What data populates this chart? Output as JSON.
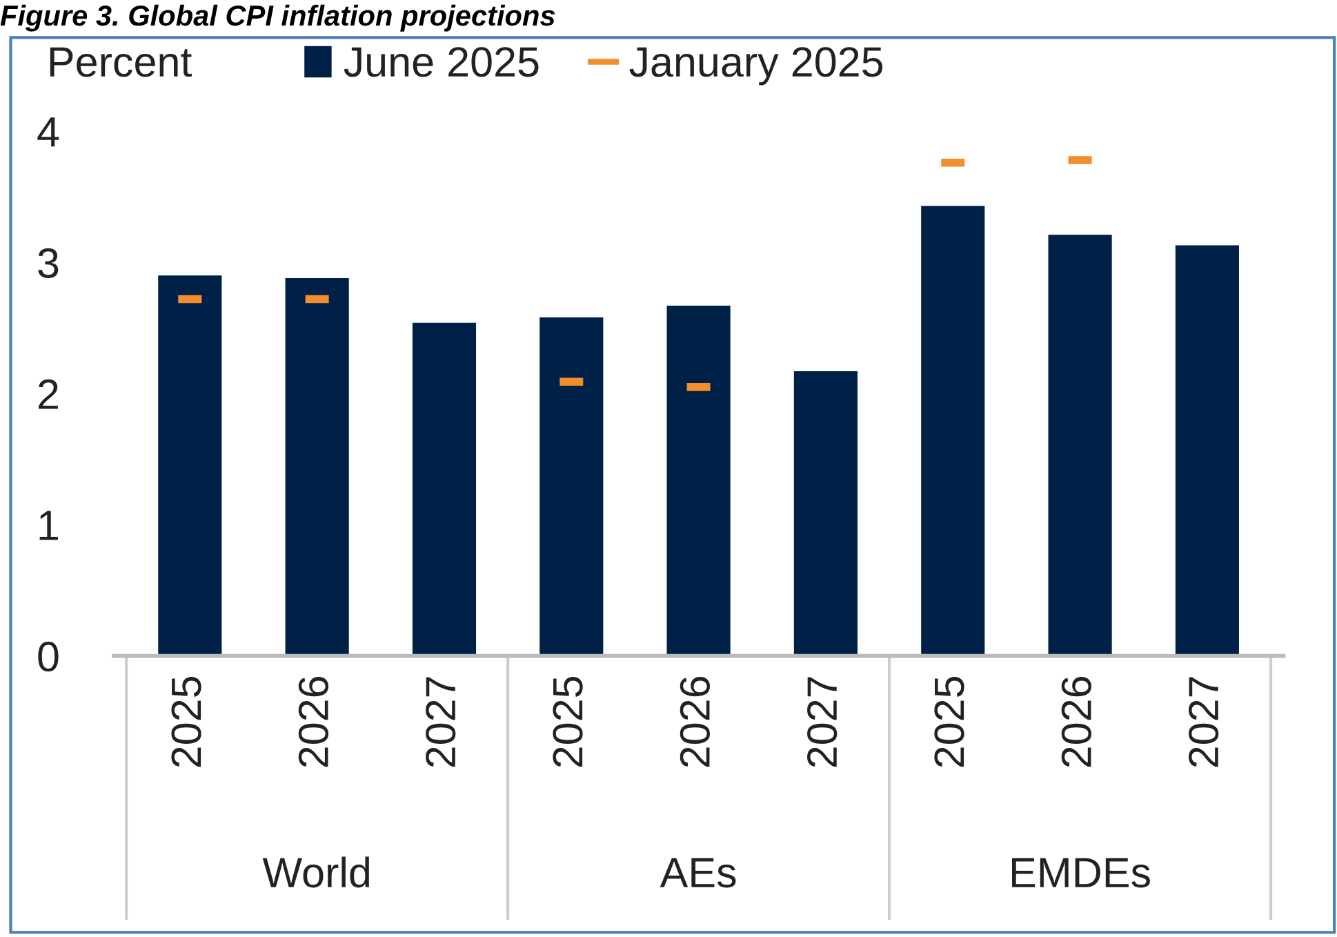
{
  "chart_data": {
    "type": "bar",
    "title": "Figure 3. Global CPI inflation projections",
    "ylabel": "Percent",
    "categories": [
      "2025",
      "2026",
      "2027",
      "2025",
      "2026",
      "2027",
      "2025",
      "2026",
      "2027"
    ],
    "annotations": [
      "World",
      "AEs",
      "EMDEs"
    ],
    "series": [
      {
        "name": "June 2025",
        "color": "#002147",
        "values": [
          2.9,
          2.88,
          2.54,
          2.58,
          2.67,
          2.17,
          3.43,
          3.21,
          3.13
        ]
      },
      {
        "name": "January 2025",
        "type": "scatter",
        "color": "#f28e2b",
        "values": [
          2.72,
          2.72,
          null,
          2.09,
          2.05,
          null,
          3.76,
          3.78,
          null
        ]
      }
    ],
    "ylim": [
      0,
      4
    ],
    "yticks": [
      0,
      1,
      2,
      3,
      4
    ],
    "grid": false,
    "legend": "top left"
  }
}
